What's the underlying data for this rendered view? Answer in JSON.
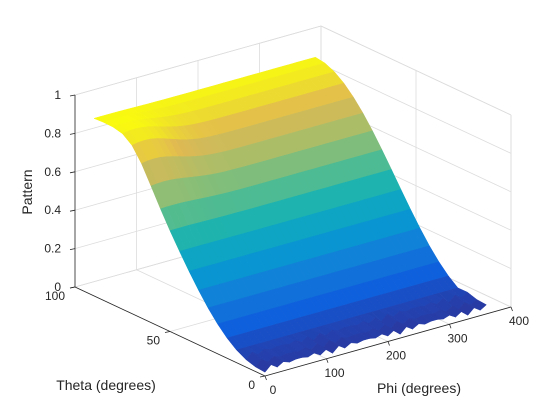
{
  "chart_data": {
    "type": "surface",
    "title": "",
    "xlabel": "Phi (degrees)",
    "ylabel": "Theta (degrees)",
    "zlabel": "Pattern",
    "xlim": [
      0,
      400
    ],
    "ylim": [
      0,
      100
    ],
    "zlim": [
      0,
      1
    ],
    "xticks": [
      0,
      100,
      200,
      300,
      400
    ],
    "yticks": [
      0,
      50,
      100
    ],
    "zticks": [
      0,
      0.2,
      0.4,
      0.6,
      0.8,
      1
    ],
    "xtick_labels": [
      "0",
      "100",
      "200",
      "300",
      "400"
    ],
    "ytick_labels": [
      "0",
      "50",
      "100"
    ],
    "ztick_labels": [
      "0",
      "0.2",
      "0.4",
      "0.6",
      "0.8",
      "1"
    ],
    "phi_range": [
      0,
      360
    ],
    "theta_range": [
      0,
      90
    ],
    "description_of_values": "Pattern rises with theta toward a near-flat ridge of about 0.9 at theta = 90 for all phi; at theta = 0 the pattern is near 0.",
    "surface_samples": [
      {
        "phi": 0,
        "theta": 90,
        "pattern": 0.88
      },
      {
        "phi": 90,
        "theta": 90,
        "pattern": 0.9
      },
      {
        "phi": 180,
        "theta": 90,
        "pattern": 0.91
      },
      {
        "phi": 270,
        "theta": 90,
        "pattern": 0.91
      },
      {
        "phi": 360,
        "theta": 90,
        "pattern": 0.91
      },
      {
        "phi": 0,
        "theta": 60,
        "pattern": 0.55
      },
      {
        "phi": 180,
        "theta": 60,
        "pattern": 0.55
      },
      {
        "phi": 360,
        "theta": 60,
        "pattern": 0.55
      },
      {
        "phi": 0,
        "theta": 30,
        "pattern": 0.2
      },
      {
        "phi": 180,
        "theta": 30,
        "pattern": 0.2
      },
      {
        "phi": 360,
        "theta": 30,
        "pattern": 0.2
      },
      {
        "phi": 0,
        "theta": 0,
        "pattern": 0.02
      },
      {
        "phi": 360,
        "theta": 0,
        "pattern": 0.02
      }
    ],
    "colormap": "parula",
    "grid": true,
    "legend": false
  }
}
